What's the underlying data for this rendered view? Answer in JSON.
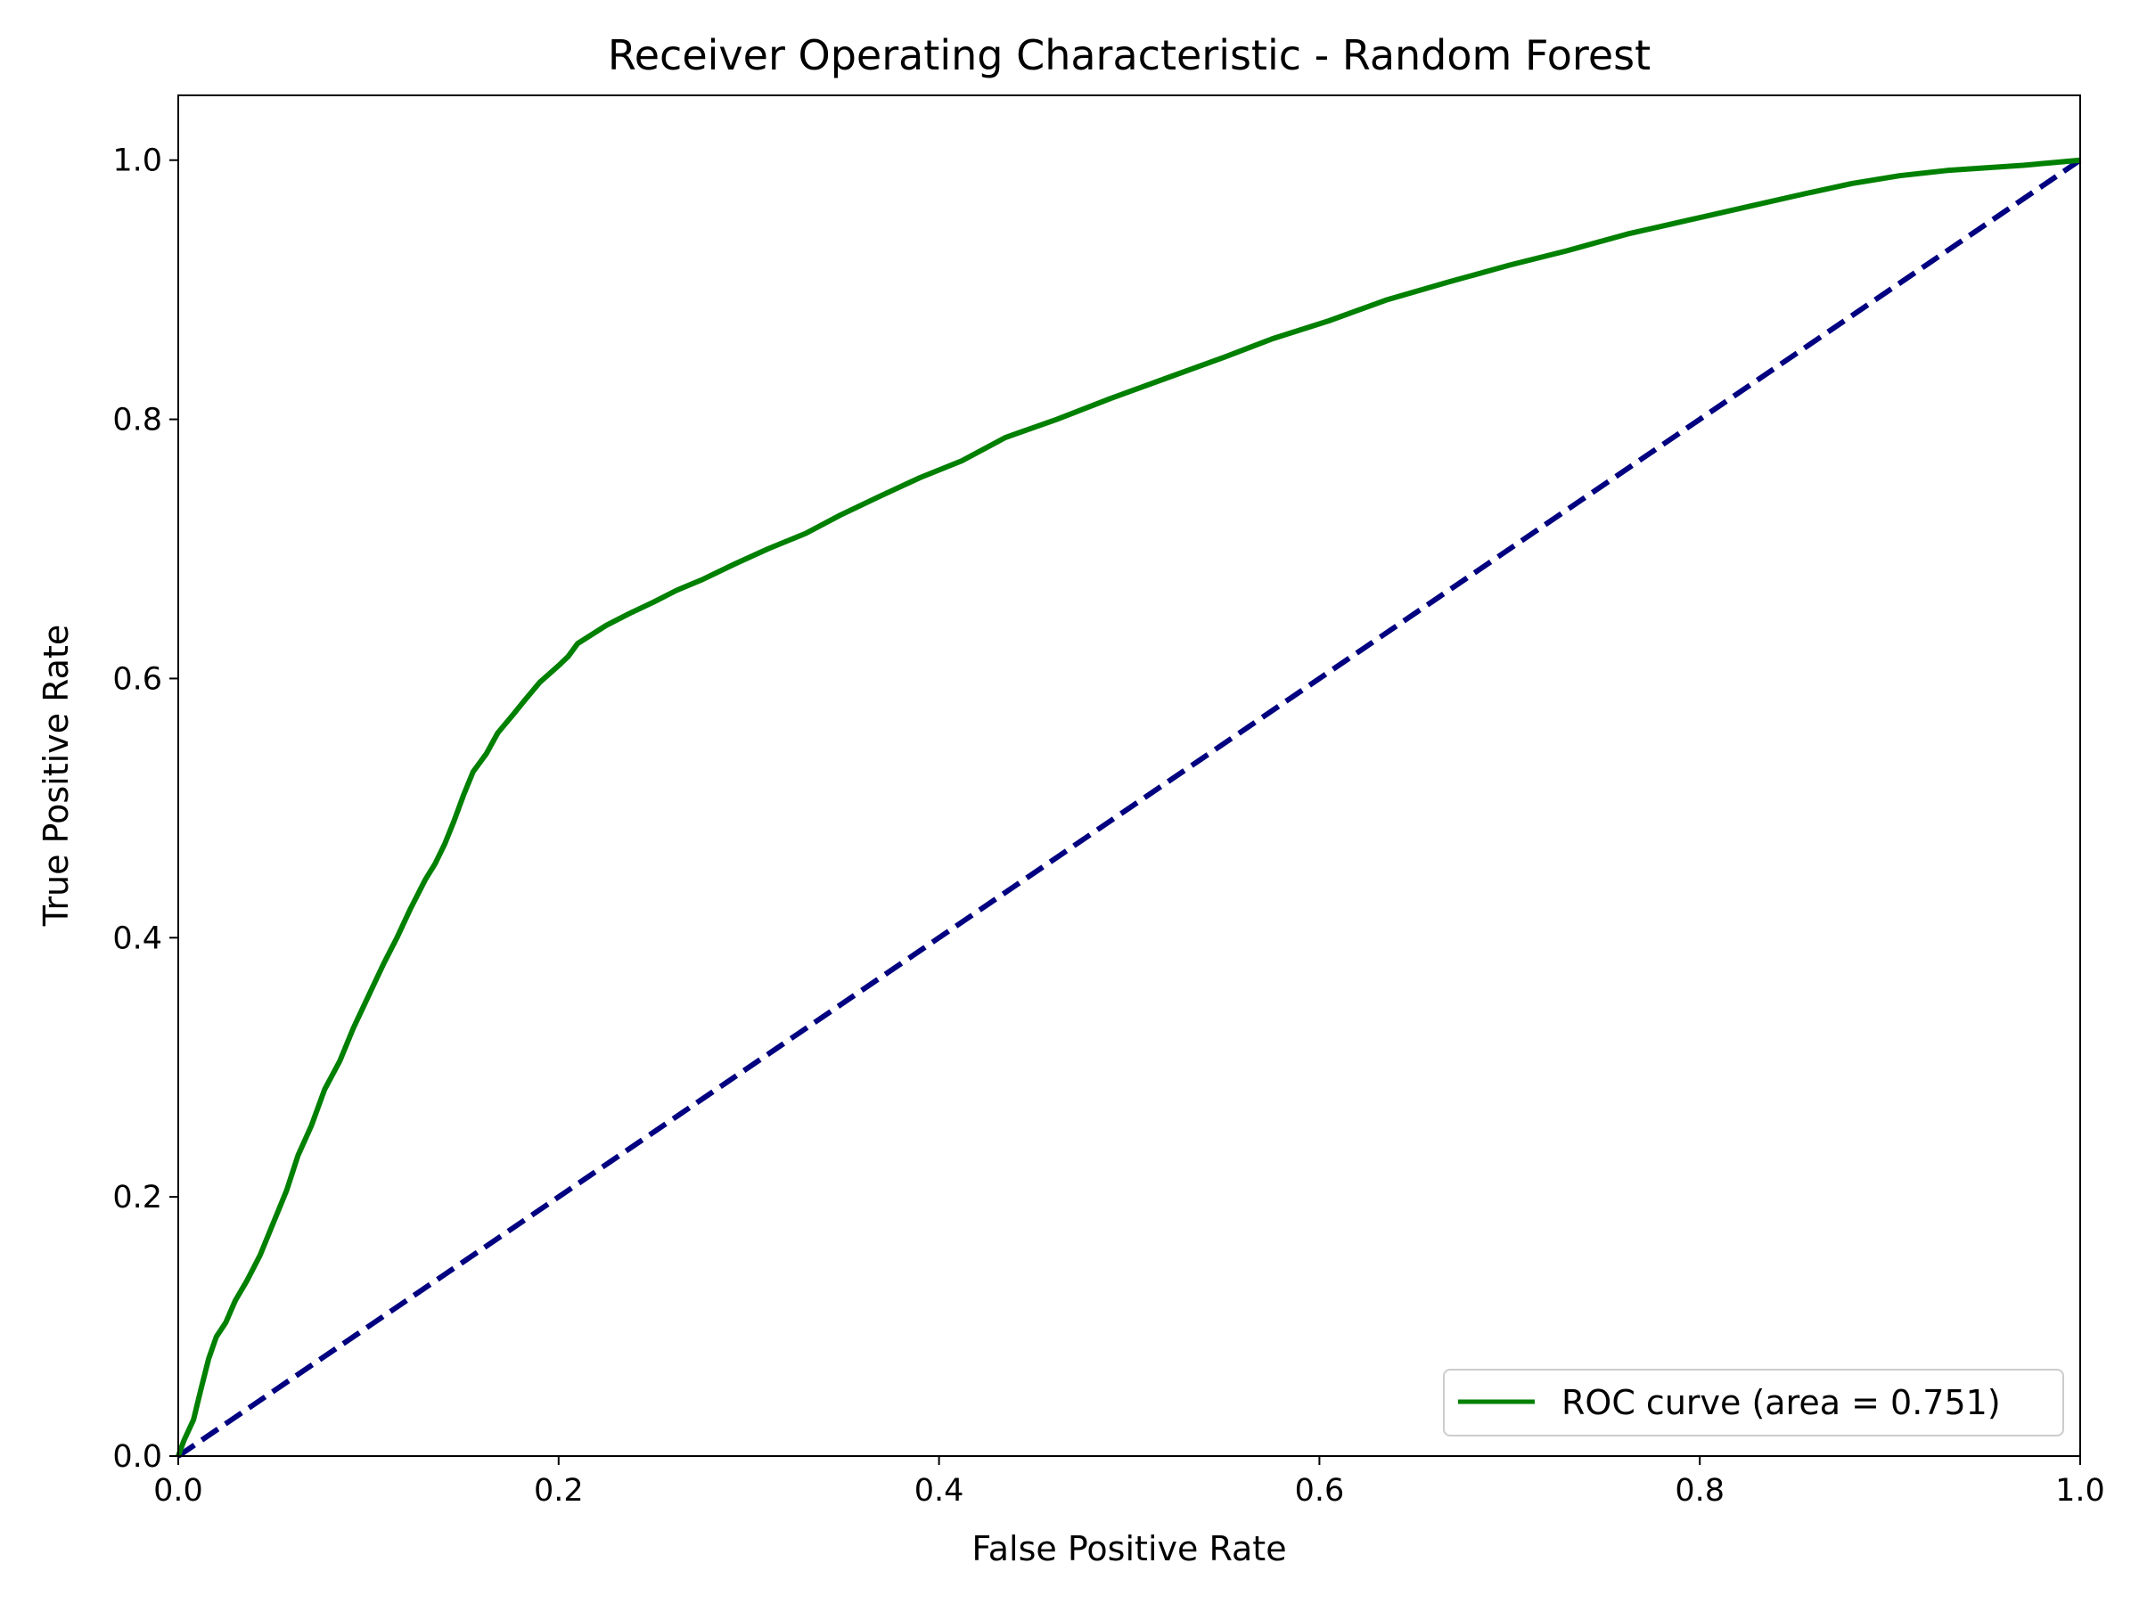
{
  "chart_data": {
    "type": "line",
    "title": "Receiver Operating Characteristic - Random Forest",
    "xlabel": "False Positive Rate",
    "ylabel": "True Positive Rate",
    "xlim": [
      0.0,
      1.0
    ],
    "ylim": [
      0.0,
      1.05
    ],
    "xticks": [
      "0.0",
      "0.2",
      "0.4",
      "0.6",
      "0.8",
      "1.0"
    ],
    "yticks": [
      "0.0",
      "0.2",
      "0.4",
      "0.6",
      "0.8",
      "1.0"
    ],
    "grid": false,
    "legend_position": "lower right",
    "series": [
      {
        "name": "ROC curve (area = 0.751)",
        "color": "#008000",
        "style": "solid",
        "x": [
          0.0,
          0.003,
          0.008,
          0.012,
          0.016,
          0.02,
          0.025,
          0.03,
          0.036,
          0.043,
          0.05,
          0.057,
          0.063,
          0.07,
          0.077,
          0.085,
          0.092,
          0.1,
          0.108,
          0.115,
          0.122,
          0.13,
          0.135,
          0.14,
          0.145,
          0.15,
          0.155,
          0.162,
          0.168,
          0.176,
          0.182,
          0.19,
          0.2,
          0.205,
          0.21,
          0.225,
          0.237,
          0.25,
          0.262,
          0.275,
          0.292,
          0.31,
          0.33,
          0.348,
          0.368,
          0.39,
          0.412,
          0.435,
          0.462,
          0.49,
          0.52,
          0.55,
          0.575,
          0.605,
          0.635,
          0.668,
          0.7,
          0.73,
          0.762,
          0.795,
          0.825,
          0.855,
          0.88,
          0.905,
          0.93,
          0.95,
          0.97,
          0.985,
          1.0
        ],
        "y": [
          0.0,
          0.012,
          0.028,
          0.052,
          0.075,
          0.092,
          0.103,
          0.12,
          0.135,
          0.155,
          0.18,
          0.205,
          0.232,
          0.255,
          0.283,
          0.305,
          0.33,
          0.355,
          0.38,
          0.4,
          0.422,
          0.445,
          0.457,
          0.472,
          0.49,
          0.51,
          0.528,
          0.542,
          0.558,
          0.572,
          0.583,
          0.597,
          0.61,
          0.617,
          0.627,
          0.641,
          0.65,
          0.659,
          0.668,
          0.676,
          0.688,
          0.7,
          0.712,
          0.726,
          0.74,
          0.755,
          0.768,
          0.786,
          0.8,
          0.816,
          0.832,
          0.848,
          0.862,
          0.876,
          0.892,
          0.906,
          0.919,
          0.93,
          0.943,
          0.954,
          0.964,
          0.974,
          0.982,
          0.988,
          0.992,
          0.994,
          0.996,
          0.998,
          1.0
        ]
      },
      {
        "name": "",
        "color": "#000080",
        "style": "dashed",
        "x": [
          0.0,
          1.0
        ],
        "y": [
          0.0,
          1.0
        ]
      }
    ]
  }
}
